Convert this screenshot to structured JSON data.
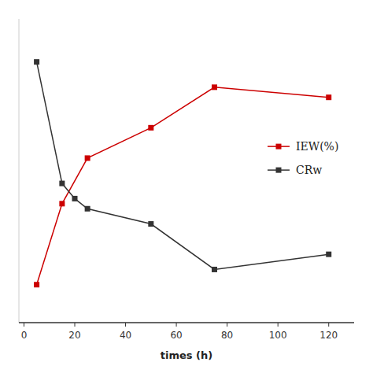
{
  "chart_data": {
    "type": "line",
    "x_label": "times (h)",
    "series": [
      {
        "name": "IEW(%)",
        "color": "#cc0000",
        "marker": "square",
        "x": [
          5,
          15,
          25,
          50,
          75,
          120
        ],
        "values": [
          10,
          42,
          60,
          72,
          88,
          84
        ]
      },
      {
        "name": "CRw",
        "color": "#333333",
        "marker": "square",
        "x": [
          5,
          15,
          20,
          25,
          50,
          75,
          120
        ],
        "values": [
          98,
          50,
          44,
          40,
          34,
          16,
          22
        ]
      }
    ],
    "xlim": [
      -2,
      130
    ],
    "xticks": [
      0,
      20,
      40,
      60,
      80,
      100,
      120
    ],
    "ylim": [
      -5,
      115
    ],
    "tick_labels": "x",
    "legend": "right"
  }
}
